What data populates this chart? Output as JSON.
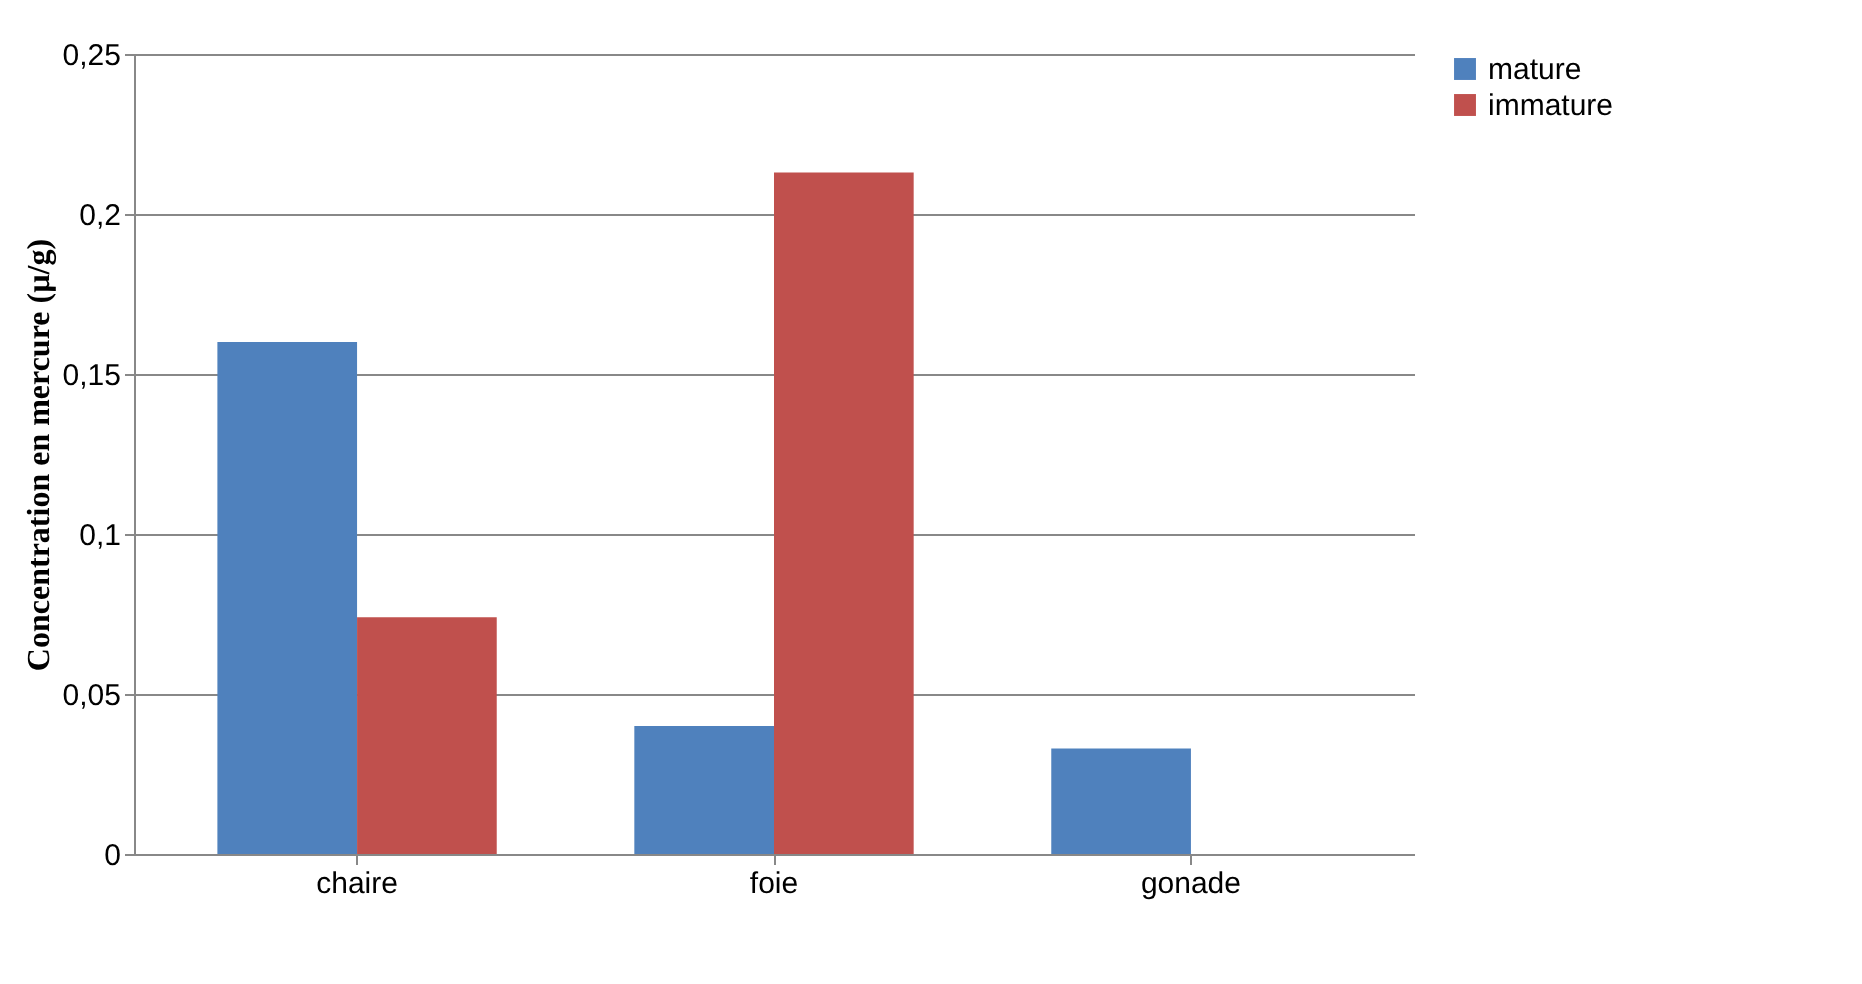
{
  "chart_data": {
    "type": "bar",
    "ylabel": "Concentration en mercure (µ/g)",
    "categories": [
      "chaire",
      "foie",
      "gonade"
    ],
    "series": [
      {
        "name": "mature",
        "color": "#4f81bd",
        "values": [
          0.16,
          0.04,
          0.033
        ]
      },
      {
        "name": "immature",
        "color": "#c0504d",
        "values": [
          0.074,
          0.213,
          0
        ]
      }
    ],
    "ylim": [
      0,
      0.25
    ],
    "yticks": [
      0,
      {
        "value": 0.05,
        "label": "0,05"
      },
      {
        "value": 0.1,
        "label": "0,1"
      },
      {
        "value": 0.15,
        "label": "0,15"
      },
      {
        "value": 0.2,
        "label": "0,2"
      },
      {
        "value": 0.25,
        "label": "0,25"
      }
    ],
    "grid": "y",
    "legend": "right"
  }
}
